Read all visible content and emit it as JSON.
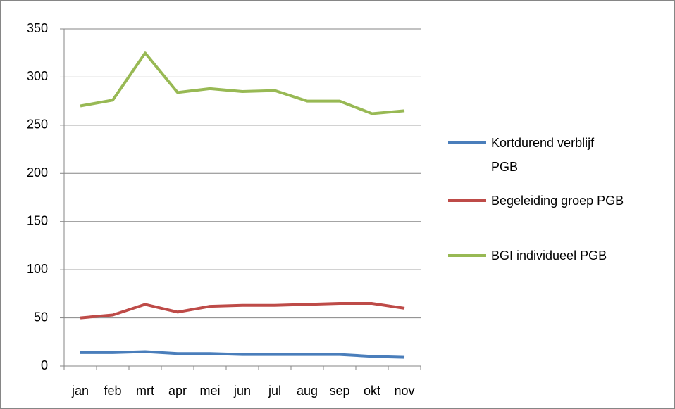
{
  "chart_data": {
    "type": "line",
    "categories": [
      "jan",
      "feb",
      "mrt",
      "apr",
      "mei",
      "jun",
      "jul",
      "aug",
      "sep",
      "okt",
      "nov"
    ],
    "series": [
      {
        "name": "Kortdurend verblijf PGB",
        "color": "#4a7ebb",
        "values": [
          14,
          14,
          15,
          13,
          13,
          12,
          12,
          12,
          12,
          10,
          9
        ]
      },
      {
        "name": "Begeleiding groep PGB",
        "color": "#be4b48",
        "values": [
          50,
          53,
          64,
          56,
          62,
          63,
          63,
          64,
          65,
          65,
          60
        ]
      },
      {
        "name": "BGI individueel PGB",
        "color": "#98b954",
        "values": [
          270,
          276,
          325,
          284,
          288,
          285,
          286,
          275,
          275,
          262,
          265
        ]
      }
    ],
    "ylim": [
      0,
      350
    ],
    "yticks": [
      0,
      50,
      100,
      150,
      200,
      250,
      300,
      350
    ],
    "grid": true,
    "legend": "right"
  }
}
